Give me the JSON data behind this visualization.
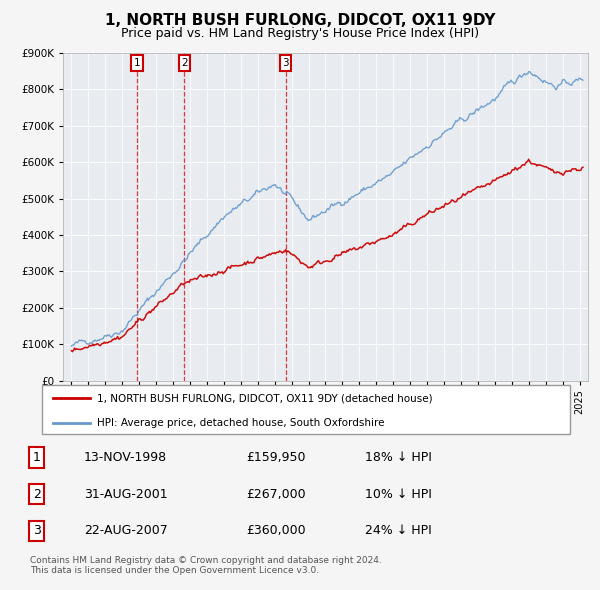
{
  "title": "1, NORTH BUSH FURLONG, DIDCOT, OX11 9DY",
  "subtitle": "Price paid vs. HM Land Registry's House Price Index (HPI)",
  "legend_red": "1, NORTH BUSH FURLONG, DIDCOT, OX11 9DY (detached house)",
  "legend_blue": "HPI: Average price, detached house, South Oxfordshire",
  "footnote": "Contains HM Land Registry data © Crown copyright and database right 2024.\nThis data is licensed under the Open Government Licence v3.0.",
  "sales": [
    {
      "num": 1,
      "date": "13-NOV-1998",
      "price": "£159,950",
      "hpi": "18% ↓ HPI",
      "year": 1998.87,
      "value": 159950
    },
    {
      "num": 2,
      "date": "31-AUG-2001",
      "price": "£267,000",
      "hpi": "10% ↓ HPI",
      "year": 2001.67,
      "value": 267000
    },
    {
      "num": 3,
      "date": "22-AUG-2007",
      "price": "£360,000",
      "hpi": "24% ↓ HPI",
      "year": 2007.64,
      "value": 360000
    }
  ],
  "ylim_max": 900000,
  "xlim_start": 1994.5,
  "xlim_end": 2025.5,
  "red_color": "#cc0000",
  "blue_color": "#6699cc",
  "bg_color": "#f0f0f0",
  "plot_bg": "#e8e8f0",
  "grid_color": "#ffffff",
  "title_fontsize": 11,
  "subtitle_fontsize": 9,
  "tick_fontsize": 7,
  "ylabel_fontsize": 8
}
